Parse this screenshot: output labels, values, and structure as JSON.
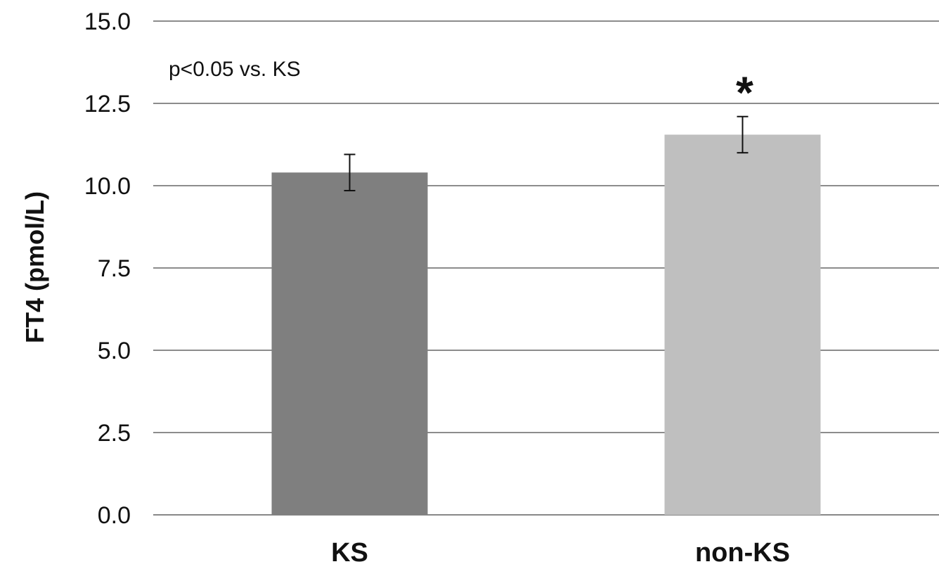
{
  "chart_data": {
    "type": "bar",
    "categories": [
      "KS",
      "non-KS"
    ],
    "values": [
      10.4,
      11.55
    ],
    "error": [
      0.55,
      0.55
    ],
    "colors": [
      "#7f7f7f",
      "#bfbfbf"
    ],
    "ylabel": "FT4 (pmol/L)",
    "ylim": [
      0,
      15
    ],
    "yticks": [
      "0.0",
      "2.5",
      "5.0",
      "7.5",
      "10.0",
      "12.5",
      "15.0"
    ],
    "grid": true,
    "annotation": "p<0.05 vs. KS",
    "significance_marks": [
      "",
      "*"
    ]
  }
}
